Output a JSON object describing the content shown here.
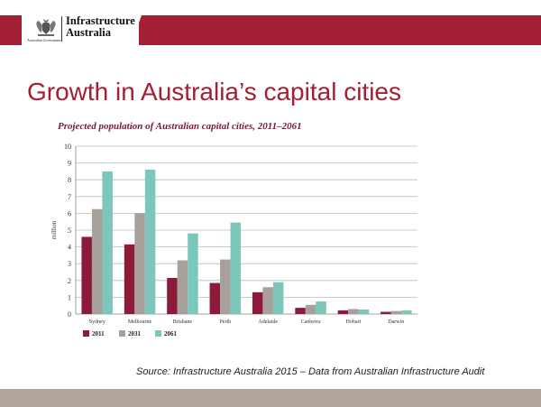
{
  "header": {
    "org_name": "Infrastructure\nAustralia",
    "gov_name": "Australian Government",
    "crest_icon": "coat-of-arms-icon"
  },
  "slide": {
    "title": "Growth in Australia’s capital cities",
    "source": "Source:  Infrastructure Australia 2015 – Data from Australian Infrastructure Audit"
  },
  "colors": {
    "brand_red": "#a31f34",
    "footer_band": "#b0a69e"
  },
  "chart_data": {
    "type": "bar",
    "title": "Projected population of Australian capital cities, 2011–2061",
    "ylabel": "million",
    "xlabel": "",
    "ylim": [
      0,
      10
    ],
    "yticks": [
      "0",
      "1",
      "2",
      "3",
      "4",
      "5",
      "6",
      "7",
      "8",
      "9",
      "10"
    ],
    "grid": true,
    "legend_position": "bottom-left",
    "categories": [
      "Sydney",
      "Melbourne",
      "Brisbane",
      "Perth",
      "Adelaide",
      "Canberra",
      "Hobart",
      "Darwin"
    ],
    "series": [
      {
        "name": "2011",
        "color": "#8b1a3b",
        "values": [
          4.6,
          4.15,
          2.15,
          1.85,
          1.3,
          0.37,
          0.22,
          0.13
        ]
      },
      {
        "name": "2031",
        "color": "#a8a09a",
        "values": [
          6.25,
          6.0,
          3.2,
          3.25,
          1.6,
          0.55,
          0.3,
          0.18
        ]
      },
      {
        "name": "2061",
        "color": "#7cc6bc",
        "values": [
          8.5,
          8.6,
          4.8,
          5.45,
          1.9,
          0.75,
          0.27,
          0.22
        ]
      }
    ]
  }
}
